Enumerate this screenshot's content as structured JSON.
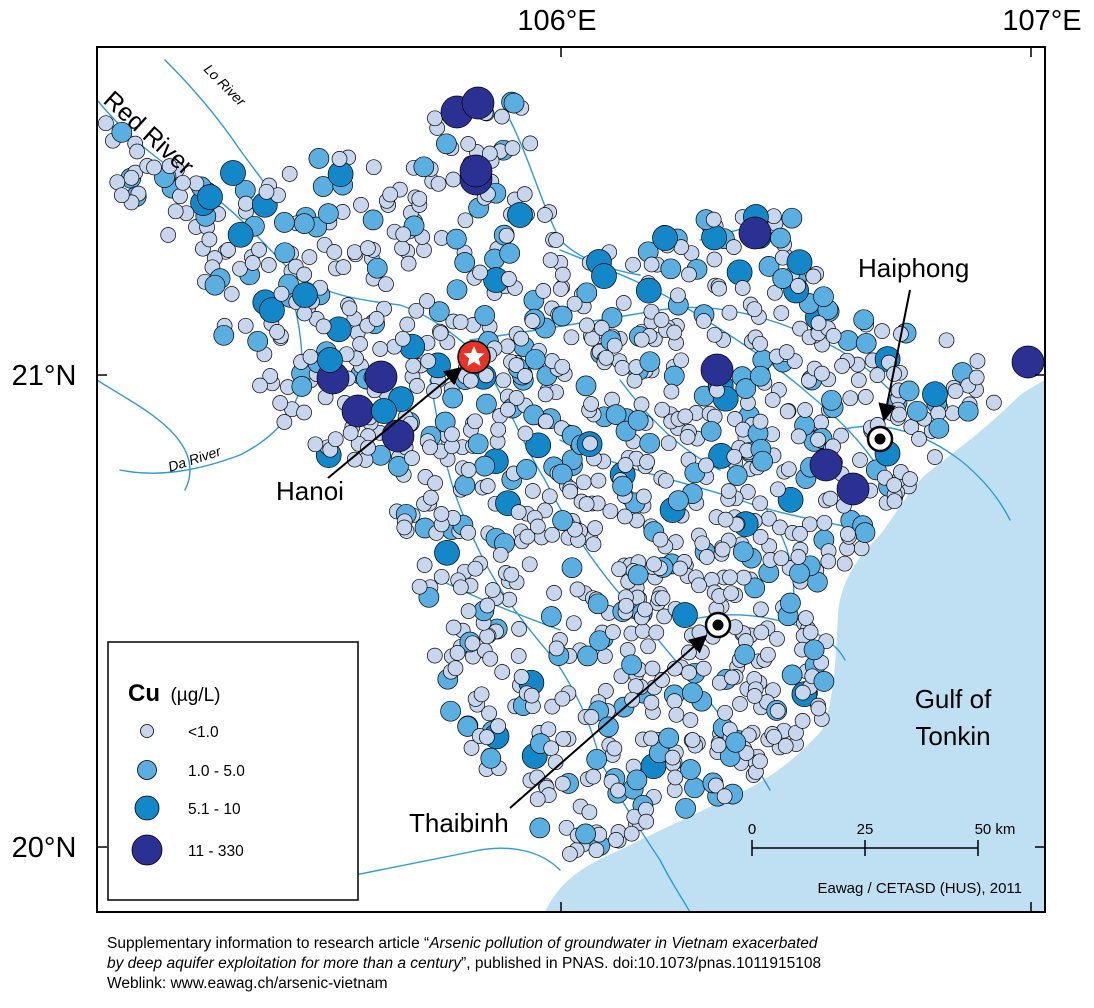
{
  "map": {
    "axis_labels": {
      "lon_106": "106°E",
      "lon_107": "107°E",
      "lat_21": "21°N",
      "lat_20": "20°N"
    },
    "rivers": {
      "red_river": "Red River",
      "lo_river": "Lo River",
      "da_river": "Da River"
    },
    "cities": {
      "hanoi": "Hanoi",
      "haiphong": "Haiphong",
      "thaibinh": "Thaibinh"
    },
    "sea": {
      "line1": "Gulf of",
      "line2": "Tonkin"
    },
    "scale_bar": {
      "t0": "0",
      "t25": "25",
      "t50": "50 km"
    },
    "credit": "Eawag / CETASD (HUS), 2011",
    "colors": {
      "sea": "#bfe0f3",
      "river": "#2e9ad8",
      "bg": "#ffffff",
      "c1": "#c7d6ec",
      "c2": "#5aaee0",
      "c3": "#1487c9",
      "c4": "#2b3192",
      "hanoi": "#e63227"
    }
  },
  "legend": {
    "element": "Cu",
    "unit": "(µg/L)",
    "classes": [
      {
        "label": "<1.0",
        "color": "#c7d6ec"
      },
      {
        "label": "1.0 - 5.0",
        "color": "#5aaee0"
      },
      {
        "label": "5.1 - 10",
        "color": "#1487c9"
      },
      {
        "label": "11 - 330",
        "color": "#2b3192"
      }
    ]
  },
  "caption": {
    "l1_pre": "Supplementary information to research article “",
    "l1_title": "Arsenic pollution of groundwater in Vietnam exacerbated",
    "l2_title": "by deep aquifer exploitation for more than a century",
    "l2_post": "”, published in PNAS. doi:10.1073/pnas.1011915108",
    "l3": "Weblink: www.eawag.ch/arsenic-vietnam"
  }
}
